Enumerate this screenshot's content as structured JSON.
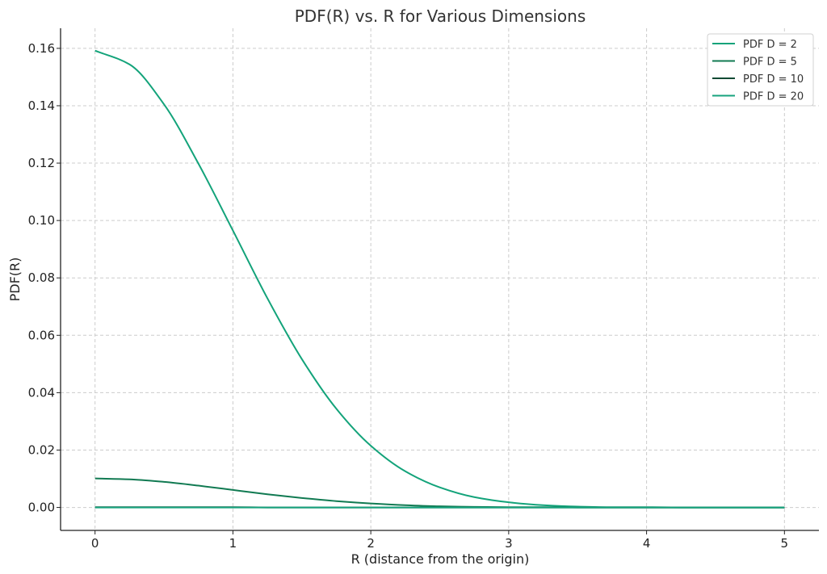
{
  "chart_data": {
    "type": "line",
    "title": "PDF(R) vs. R for Various Dimensions",
    "xlabel": "R (distance from the origin)",
    "ylabel": "PDF(R)",
    "xlim": [
      -0.25,
      5.25
    ],
    "ylim": [
      -0.008,
      0.167
    ],
    "xticks": [
      0,
      1,
      2,
      3,
      4,
      5
    ],
    "xtick_labels": [
      "0",
      "1",
      "2",
      "3",
      "4",
      "5"
    ],
    "yticks": [
      0.0,
      0.02,
      0.04,
      0.06,
      0.08,
      0.1,
      0.12,
      0.14,
      0.16
    ],
    "ytick_labels": [
      "0.00",
      "0.02",
      "0.04",
      "0.06",
      "0.08",
      "0.10",
      "0.12",
      "0.14",
      "0.16"
    ],
    "grid": true,
    "legend_position": "top-right",
    "x": [
      0,
      0.25,
      0.5,
      0.75,
      1.0,
      1.25,
      1.5,
      1.75,
      2.0,
      2.25,
      2.5,
      2.75,
      3.0,
      3.25,
      3.5,
      3.75,
      4.0,
      4.25,
      4.5,
      4.75,
      5.0
    ],
    "series": [
      {
        "name": "PDF D = 2",
        "color": "#13a37a",
        "values": [
          0.1592,
          0.1544,
          0.1405,
          0.1198,
          0.0965,
          0.0729,
          0.0517,
          0.0344,
          0.0215,
          0.0126,
          0.007,
          0.0036,
          0.0018,
          0.0008,
          0.0003,
          0.0001,
          0.0001,
          0.0,
          0.0,
          0.0,
          0.0
        ]
      },
      {
        "name": "PDF D = 5",
        "color": "#117a52",
        "values": [
          0.0101,
          0.0098,
          0.0089,
          0.0076,
          0.0061,
          0.0046,
          0.0033,
          0.0022,
          0.0014,
          0.0008,
          0.0004,
          0.0002,
          0.0001,
          0.0001,
          0.0,
          0.0,
          0.0,
          0.0,
          0.0,
          0.0,
          0.0
        ]
      },
      {
        "name": "PDF D = 10",
        "color": "#0d4a33",
        "values": [
          0.0001,
          0.0001,
          0.0001,
          0.0001,
          0.0001,
          0.0,
          0.0,
          0.0,
          0.0,
          0.0,
          0.0,
          0.0,
          0.0,
          0.0,
          0.0,
          0.0,
          0.0,
          0.0,
          0.0,
          0.0,
          0.0
        ]
      },
      {
        "name": "PDF D = 20",
        "color": "#17a37e",
        "values": [
          0.0,
          0.0,
          0.0,
          0.0,
          0.0,
          0.0,
          0.0,
          0.0,
          0.0,
          0.0,
          0.0,
          0.0,
          0.0,
          0.0,
          0.0,
          0.0,
          0.0,
          0.0,
          0.0,
          0.0,
          0.0
        ]
      }
    ]
  }
}
